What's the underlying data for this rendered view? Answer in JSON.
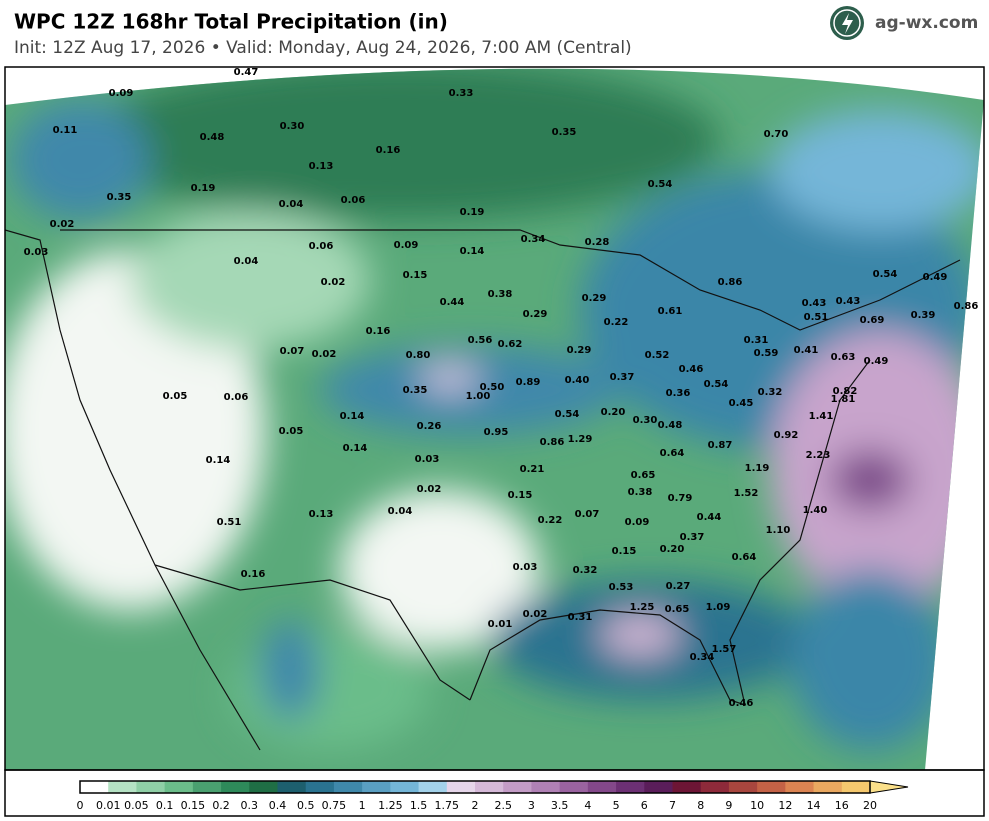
{
  "header": {
    "title": "WPC 12Z 168hr Total Precipitation (in)",
    "subtitle": "Init: 12Z Aug 17, 2026  •  Valid: Monday, Aug 24, 2026, 7:00 AM (Central)",
    "logo": "ag-wx.com"
  },
  "map": {
    "labels": [
      "0.47",
      "0.09",
      "0.33",
      "0.11",
      "0.48",
      "0.30",
      "0.35",
      "0.70",
      "0.16",
      "0.13",
      "0.54",
      "0.19",
      "0.35",
      "0.04",
      "0.06",
      "0.19",
      "0.02",
      "0.34",
      "0.28",
      "0.06",
      "0.09",
      "0.14",
      "0.03",
      "0.04",
      "0.15",
      "0.54",
      "0.49",
      "0.02",
      "0.86",
      "0.38",
      "0.29",
      "0.44",
      "0.43",
      "0.43",
      "0.86",
      "0.61",
      "0.29",
      "0.51",
      "0.69",
      "0.39",
      "0.22",
      "0.16",
      "0.56",
      "0.62",
      "0.31",
      "0.07",
      "0.02",
      "0.29",
      "0.59",
      "0.41",
      "0.52",
      "0.80",
      "0.63",
      "0.49",
      "0.46",
      "0.37",
      "0.89",
      "0.40",
      "0.54",
      "0.50",
      "0.35",
      "0.05",
      "0.06",
      "1.00",
      "0.36",
      "0.32",
      "0.82",
      "0.45",
      "1.81",
      "0.54",
      "0.20",
      "1.41",
      "0.14",
      "0.30",
      "0.48",
      "0.26",
      "0.05",
      "0.95",
      "0.92",
      "0.86",
      "1.29",
      "0.87",
      "0.14",
      "0.64",
      "2.23",
      "0.03",
      "0.14",
      "1.19",
      "0.21",
      "0.65",
      "0.02",
      "0.38",
      "1.52",
      "0.15",
      "0.79",
      "1.40",
      "0.13",
      "0.04",
      "0.07",
      "0.44",
      "0.22",
      "0.09",
      "0.51",
      "1.10",
      "0.37",
      "0.20",
      "0.15",
      "0.64",
      "0.03",
      "0.32",
      "0.16",
      "0.53",
      "0.27",
      "1.25",
      "0.65",
      "1.09",
      "0.02",
      "0.31",
      "0.01",
      "1.57",
      "0.34",
      "0.46"
    ]
  },
  "colorbar": {
    "ticks": [
      "0",
      "0.01",
      "0.05",
      "0.1",
      "0.15",
      "0.2",
      "0.3",
      "0.4",
      "0.5",
      "0.75",
      "1",
      "1.25",
      "1.5",
      "1.75",
      "2",
      "2.5",
      "3",
      "3.5",
      "4",
      "5",
      "6",
      "7",
      "8",
      "9",
      "10",
      "12",
      "14",
      "16",
      "20"
    ],
    "colors": [
      "#ffffff",
      "#b5e2c4",
      "#8fcfa6",
      "#6bbd8a",
      "#4aa070",
      "#2e8a5a",
      "#1f6e45",
      "#1d5f6e",
      "#2a7390",
      "#3f88aa",
      "#5a9fc2",
      "#74b6d8",
      "#a3d2ea",
      "#e6d6ea",
      "#d5b9d8",
      "#c39cc6",
      "#b081b5",
      "#9a63a0",
      "#83488a",
      "#6c3074",
      "#5a1d5a",
      "#6d1535",
      "#8e2a3a",
      "#a8463e",
      "#c46246",
      "#dc8452",
      "#eaa860",
      "#f5c86e",
      "#fbe08a"
    ]
  }
}
